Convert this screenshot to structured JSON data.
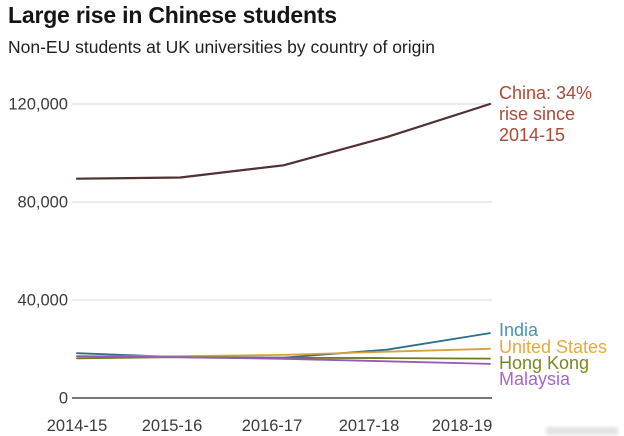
{
  "chart_data": {
    "type": "line",
    "title": "Large rise in Chinese students",
    "subtitle": "Non-EU students at UK universities by country of origin",
    "x_categories": [
      "2014-15",
      "2015-16",
      "2016-17",
      "2017-18",
      "2018-19"
    ],
    "y_axis": {
      "ticks": [
        0,
        40000,
        80000,
        120000
      ],
      "tick_labels": [
        "0",
        "40,000",
        "80,000",
        "120,000"
      ],
      "range": [
        0,
        125000
      ]
    },
    "grid": "horizontal-only",
    "legend_position": "right-of-line-ends",
    "series": [
      {
        "name": "China",
        "values": [
          89500,
          90000,
          95000,
          106500,
          120000
        ],
        "line_color": "#513031",
        "label": null
      },
      {
        "name": "India",
        "values": [
          18300,
          16700,
          16500,
          19700,
          26500
        ],
        "line_color": "#2e7086",
        "label": "India",
        "label_color": "#4a95ab"
      },
      {
        "name": "United States",
        "values": [
          17000,
          17100,
          17600,
          18900,
          20100
        ],
        "line_color": "#d7a23b",
        "label": "United States",
        "label_color": "#e5aa3e"
      },
      {
        "name": "Hong Kong",
        "values": [
          16200,
          16700,
          16400,
          16300,
          16100
        ],
        "line_color": "#6d7b1d",
        "label": "Hong Kong",
        "label_color": "#7b871f"
      },
      {
        "name": "Malaysia",
        "values": [
          17100,
          16600,
          16000,
          15000,
          13900
        ],
        "line_color": "#9659bb",
        "label": "Malaysia",
        "label_color": "#a666c8"
      }
    ],
    "annotation": {
      "series": "China",
      "text_lines": [
        "China: 34%",
        "rise since",
        "2014-15"
      ],
      "color": "#a84b38"
    }
  }
}
